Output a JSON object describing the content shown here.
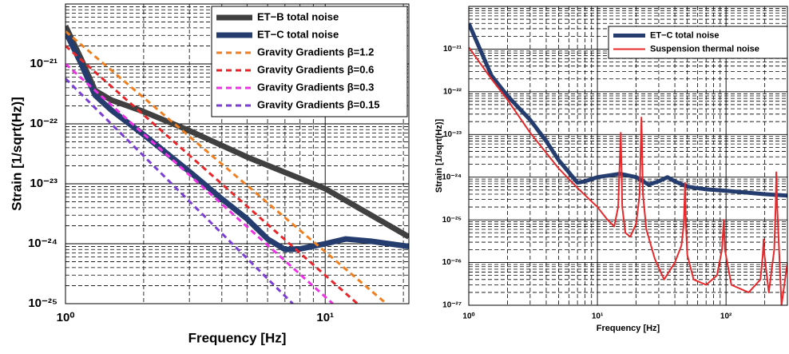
{
  "chart_data": [
    {
      "type": "line",
      "xlabel": "Frequency [Hz]",
      "ylabel": "Strain [1/sqrt(Hz)]",
      "xscale": "log",
      "yscale": "log",
      "grid": true,
      "minor_grid": true,
      "legend": "upper right",
      "xlim": [
        1,
        21
      ],
      "ylim": [
        1e-25,
        1e-20
      ],
      "xticks": [
        {
          "value": 1,
          "label": "10⁰"
        },
        {
          "value": 10,
          "label": "10¹"
        }
      ],
      "yticks": [
        {
          "value": 1e-25,
          "label": "10⁻²⁵"
        },
        {
          "value": 1e-24,
          "label": "10⁻²⁴"
        },
        {
          "value": 1e-23,
          "label": "10⁻²³"
        },
        {
          "value": 1e-22,
          "label": "10⁻²²"
        },
        {
          "value": 1e-21,
          "label": "10⁻²¹"
        }
      ],
      "xminorticks": [
        2,
        3,
        4,
        5,
        6,
        7,
        8,
        9,
        20
      ],
      "yminorticks": [
        2e-25,
        3e-25,
        4e-25,
        5e-25,
        6e-25,
        7e-25,
        8e-25,
        9e-25,
        2e-24,
        3e-24,
        4e-24,
        5e-24,
        6e-24,
        7e-24,
        8e-24,
        9e-24,
        2e-23,
        3e-23,
        4e-23,
        5e-23,
        6e-23,
        7e-23,
        8e-23,
        9e-23,
        2e-22,
        3e-22,
        4e-22,
        5e-22,
        6e-22,
        7e-22,
        8e-22,
        9e-22,
        2e-21,
        3e-21,
        4e-21,
        5e-21,
        6e-21,
        7e-21,
        8e-21,
        9e-21
      ],
      "series": [
        {
          "name": "ET−B total noise",
          "color": "#404040",
          "dashed": false,
          "x": [
            1,
            1.15,
            1.3,
            1.5,
            2,
            3,
            5,
            10,
            21
          ],
          "values": [
            4.3e-21,
            1.2e-21,
            3.6e-22,
            2.5e-22,
            1.6e-22,
            7.7e-23,
            2.8e-23,
            8.3e-24,
            1.3e-24
          ]
        },
        {
          "name": "ET−C total noise",
          "color": "#253d6e",
          "dashed": false,
          "x": [
            1,
            1.15,
            1.3,
            1.5,
            2,
            3,
            4,
            5,
            6,
            7,
            8,
            10,
            12,
            15,
            21
          ],
          "values": [
            3.5e-21,
            1e-21,
            3e-22,
            1.7e-22,
            6.6e-23,
            1.6e-23,
            5.6e-24,
            2.6e-24,
            1.2e-24,
            8e-25,
            8.2e-25,
            1e-24,
            1.2e-24,
            1.1e-24,
            9e-25
          ]
        },
        {
          "name": "Gravity Gradients β=1.2",
          "color": "#f07f21",
          "dashed": true,
          "x": [
            1,
            17.2
          ],
          "values": [
            3.5e-21,
            1e-25
          ]
        },
        {
          "name": "Gravity Gradients β=0.6",
          "color": "#e8262a",
          "dashed": true,
          "x": [
            1,
            13.3
          ],
          "values": [
            2e-21,
            1e-25
          ]
        },
        {
          "name": "Gravity Gradients β=0.3",
          "color": "#f032e6",
          "dashed": true,
          "x": [
            1,
            10.7
          ],
          "values": [
            1e-21,
            1e-25
          ]
        },
        {
          "name": "Gravity Gradients β=0.15",
          "color": "#7b3fd6",
          "dashed": true,
          "x": [
            1,
            7.5
          ],
          "values": [
            5.7e-22,
            1e-25
          ]
        }
      ]
    },
    {
      "type": "line",
      "xlabel": "Frequency [Hz]",
      "ylabel": "Strain [1/sqrt(Hz)]",
      "xscale": "log",
      "yscale": "log",
      "grid": true,
      "minor_grid": true,
      "legend": "upper right",
      "xlim": [
        1,
        300
      ],
      "ylim": [
        1e-27,
        1e-20
      ],
      "xticks": [
        {
          "value": 1,
          "label": "10⁰"
        },
        {
          "value": 10,
          "label": "10¹"
        },
        {
          "value": 100,
          "label": "10²"
        }
      ],
      "yticks": [
        {
          "value": 1e-27,
          "label": "10⁻²⁷"
        },
        {
          "value": 1e-26,
          "label": "10⁻²⁶"
        },
        {
          "value": 1e-25,
          "label": "10⁻²⁵"
        },
        {
          "value": 1e-24,
          "label": "10⁻²⁴"
        },
        {
          "value": 1e-23,
          "label": "10⁻²³"
        },
        {
          "value": 1e-22,
          "label": "10⁻²²"
        },
        {
          "value": 1e-21,
          "label": "10⁻²¹"
        }
      ],
      "xminorticks": [
        2,
        3,
        4,
        5,
        6,
        7,
        8,
        9,
        20,
        30,
        40,
        50,
        60,
        70,
        80,
        90,
        200,
        300
      ],
      "yminorticks": [
        2e-27,
        3e-27,
        4e-27,
        5e-27,
        6e-27,
        7e-27,
        8e-27,
        9e-27,
        2e-26,
        3e-26,
        4e-26,
        5e-26,
        6e-26,
        7e-26,
        8e-26,
        9e-26,
        2e-25,
        3e-25,
        4e-25,
        5e-25,
        6e-25,
        7e-25,
        8e-25,
        9e-25,
        2e-24,
        3e-24,
        4e-24,
        5e-24,
        6e-24,
        7e-24,
        8e-24,
        9e-24,
        2e-23,
        3e-23,
        4e-23,
        5e-23,
        6e-23,
        7e-23,
        8e-23,
        9e-23,
        2e-22,
        3e-22,
        4e-22,
        5e-22,
        6e-22,
        7e-22,
        8e-22,
        9e-22,
        2e-21,
        3e-21,
        4e-21,
        5e-21,
        6e-21,
        7e-21,
        8e-21,
        9e-21
      ],
      "series": [
        {
          "name": "ET−C total noise",
          "color": "#253d6e",
          "dashed": false,
          "x": [
            1,
            1.5,
            2,
            3,
            4,
            5,
            6,
            7,
            8,
            10,
            15,
            20,
            25,
            30,
            35,
            40,
            50,
            70,
            100,
            200,
            300
          ],
          "values": [
            4e-21,
            2.4e-22,
            8e-23,
            2.2e-23,
            7e-24,
            2.5e-24,
            1.3e-24,
            7.4e-25,
            8e-25,
            1e-24,
            1.2e-24,
            1e-24,
            6.7e-25,
            8e-25,
            1e-24,
            8e-25,
            6e-25,
            5.2e-25,
            4.8e-25,
            4e-25,
            3.7e-25
          ]
        },
        {
          "name": "Suspension thermal noise",
          "color": "#e8282a",
          "dashed": false,
          "x": [
            1,
            1.5,
            2,
            3,
            5,
            7,
            10,
            12,
            13.5,
            14.5,
            15.2,
            15.6,
            16.5,
            18,
            20,
            21.3,
            22,
            22.6,
            24,
            28,
            33,
            40,
            45,
            47,
            48,
            48.8,
            50,
            56,
            70,
            85,
            93,
            96,
            98,
            110,
            150,
            185,
            193,
            196,
            199,
            215,
            237,
            243,
            246,
            250,
            270,
            300
          ],
          "values": [
            1.1e-21,
            2e-22,
            6.5e-23,
            1.1e-23,
            1.6e-24,
            5.6e-25,
            2e-25,
            1e-25,
            7e-26,
            2e-25,
            1.1e-23,
            2e-25,
            5e-26,
            4e-26,
            8e-26,
            4e-25,
            2.5e-23,
            4e-25,
            6e-26,
            1.2e-26,
            4e-27,
            1e-26,
            2.5e-26,
            8e-26,
            7.4e-25,
            8e-26,
            1.5e-26,
            4e-27,
            3e-27,
            5e-27,
            2e-26,
            1e-25,
            2e-26,
            3e-27,
            2e-27,
            4e-27,
            1.5e-26,
            3.5e-26,
            1.5e-26,
            2e-27,
            2e-26,
            2e-25,
            1.3e-24,
            2e-25,
            1e-27,
            1e-26
          ]
        }
      ]
    }
  ]
}
